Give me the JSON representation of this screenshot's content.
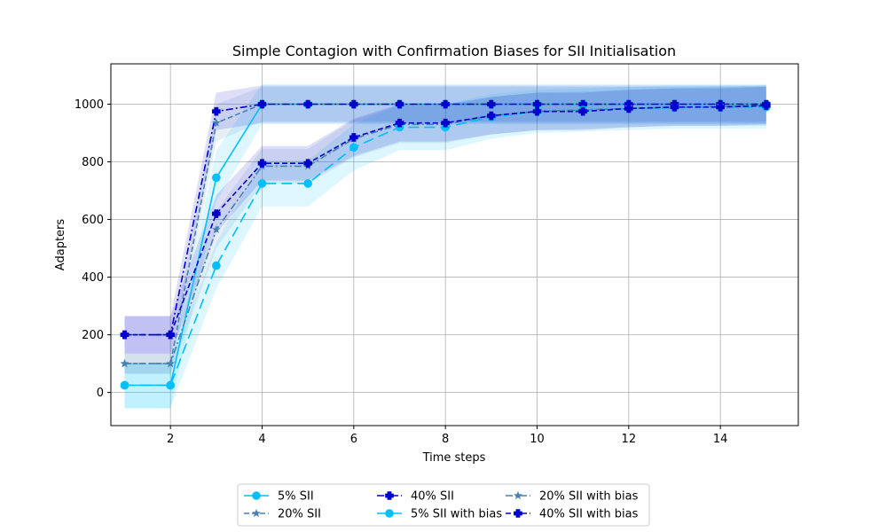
{
  "chart_data": {
    "type": "line",
    "title": "Simple Contagion with Confirmation Biases for SII Initialisation",
    "xlabel": "Time steps",
    "ylabel": "Adapters",
    "xlim": [
      0.7,
      15.7
    ],
    "ylim": [
      -115,
      1140
    ],
    "xticks": [
      2,
      4,
      6,
      8,
      10,
      12,
      14
    ],
    "yticks": [
      0,
      200,
      400,
      600,
      800,
      1000
    ],
    "grid": true,
    "legend_position": "bottom-center",
    "x": [
      1,
      2,
      3,
      4,
      5,
      6,
      7,
      8,
      9,
      10,
      11,
      12,
      13,
      14,
      15
    ],
    "series": [
      {
        "name": "5% SII",
        "color": "#00bfff",
        "dash": "solid",
        "marker": "circle",
        "values": [
          25,
          25,
          745,
          1000,
          1000,
          1000,
          1000,
          1000,
          1000,
          1000,
          1000,
          1000,
          1000,
          1000,
          1000
        ],
        "band_lower": [
          -55,
          -55,
          660,
          930,
          930,
          930,
          930,
          930,
          930,
          930,
          930,
          930,
          930,
          930,
          930
        ],
        "band_upper": [
          100,
          100,
          840,
          1070,
          1070,
          1070,
          1070,
          1070,
          1070,
          1070,
          1070,
          1070,
          1070,
          1070,
          1070
        ]
      },
      {
        "name": "20% SII",
        "color": "#4682b4",
        "dash": "dashed",
        "marker": "star",
        "values": [
          100,
          100,
          935,
          1000,
          1000,
          1000,
          1000,
          1000,
          1000,
          1000,
          1000,
          1000,
          1000,
          1000,
          1000
        ],
        "band_lower": [
          65,
          65,
          870,
          940,
          940,
          940,
          940,
          940,
          940,
          940,
          940,
          940,
          940,
          940,
          940
        ],
        "band_upper": [
          135,
          135,
          1000,
          1060,
          1060,
          1060,
          1060,
          1060,
          1060,
          1060,
          1060,
          1060,
          1060,
          1060,
          1060
        ]
      },
      {
        "name": "40% SII",
        "color": "#0000cd",
        "dash": "dashdot",
        "marker": "plus",
        "values": [
          200,
          200,
          975,
          1000,
          1000,
          1000,
          1000,
          1000,
          1000,
          1000,
          1000,
          1000,
          1000,
          1000,
          1000
        ],
        "band_lower": [
          135,
          135,
          910,
          935,
          935,
          935,
          935,
          935,
          935,
          935,
          935,
          935,
          935,
          935,
          935
        ],
        "band_upper": [
          265,
          265,
          1040,
          1065,
          1065,
          1065,
          1065,
          1065,
          1065,
          1065,
          1065,
          1065,
          1065,
          1065,
          1065
        ]
      },
      {
        "name": "5% SII with bias",
        "color": "#00bfff",
        "dash": "longdash",
        "marker": "circle",
        "values": [
          25,
          25,
          440,
          725,
          725,
          850,
          920,
          920,
          955,
          975,
          980,
          985,
          988,
          990,
          990
        ],
        "band_lower": [
          -55,
          -55,
          360,
          645,
          645,
          770,
          840,
          840,
          880,
          900,
          905,
          910,
          915,
          915,
          915
        ],
        "band_upper": [
          100,
          100,
          520,
          805,
          805,
          930,
          1000,
          1000,
          1035,
          1050,
          1055,
          1060,
          1065,
          1065,
          1065
        ]
      },
      {
        "name": "20% SII with bias",
        "color": "#4682b4",
        "dash": "dashdot",
        "marker": "star",
        "values": [
          100,
          100,
          565,
          785,
          785,
          880,
          930,
          930,
          960,
          975,
          980,
          985,
          990,
          992,
          995
        ],
        "band_lower": [
          65,
          65,
          500,
          725,
          725,
          815,
          865,
          865,
          895,
          910,
          915,
          920,
          925,
          925,
          925
        ],
        "band_upper": [
          135,
          135,
          630,
          845,
          845,
          945,
          995,
          995,
          1025,
          1040,
          1045,
          1050,
          1055,
          1060,
          1065
        ]
      },
      {
        "name": "40% SII with bias",
        "color": "#0000cd",
        "dash": "dashed",
        "marker": "plus",
        "values": [
          200,
          200,
          620,
          795,
          795,
          885,
          935,
          935,
          960,
          975,
          975,
          985,
          990,
          990,
          995
        ],
        "band_lower": [
          135,
          135,
          555,
          735,
          735,
          820,
          870,
          870,
          895,
          910,
          910,
          920,
          925,
          925,
          930
        ],
        "band_upper": [
          265,
          265,
          685,
          855,
          855,
          950,
          1000,
          1000,
          1025,
          1040,
          1040,
          1050,
          1055,
          1055,
          1060
        ]
      }
    ]
  }
}
